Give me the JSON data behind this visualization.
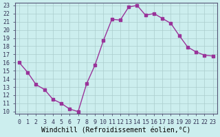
{
  "x": [
    0,
    1,
    2,
    3,
    4,
    5,
    6,
    7,
    8,
    9,
    10,
    11,
    12,
    13,
    14,
    15,
    16,
    17,
    18,
    19,
    20,
    21,
    22,
    23
  ],
  "y": [
    16.0,
    14.8,
    13.3,
    12.7,
    11.5,
    11.0,
    10.3,
    10.0,
    13.4,
    15.7,
    18.7,
    21.3,
    21.2,
    22.8,
    23.0,
    21.8,
    22.0,
    21.4,
    20.8,
    19.3,
    17.9,
    17.3,
    16.9,
    16.8
  ],
  "color": "#993399",
  "bg_color": "#cceeee",
  "grid_color": "#aacccc",
  "xlabel": "Windchill (Refroidissement éolien,°C)",
  "xlim": [
    -0.5,
    23.5
  ],
  "ylim_min": 9.7,
  "ylim_max": 23.3,
  "yticks": [
    10,
    11,
    12,
    13,
    14,
    15,
    16,
    17,
    18,
    19,
    20,
    21,
    22,
    23
  ],
  "xticks": [
    0,
    1,
    2,
    3,
    4,
    5,
    6,
    7,
    8,
    9,
    10,
    11,
    12,
    13,
    14,
    15,
    16,
    17,
    18,
    19,
    20,
    21,
    22,
    23
  ],
  "xlabel_fontsize": 7,
  "tick_fontsize": 6,
  "marker": "s",
  "marker_size": 2.5,
  "line_width": 1.0
}
